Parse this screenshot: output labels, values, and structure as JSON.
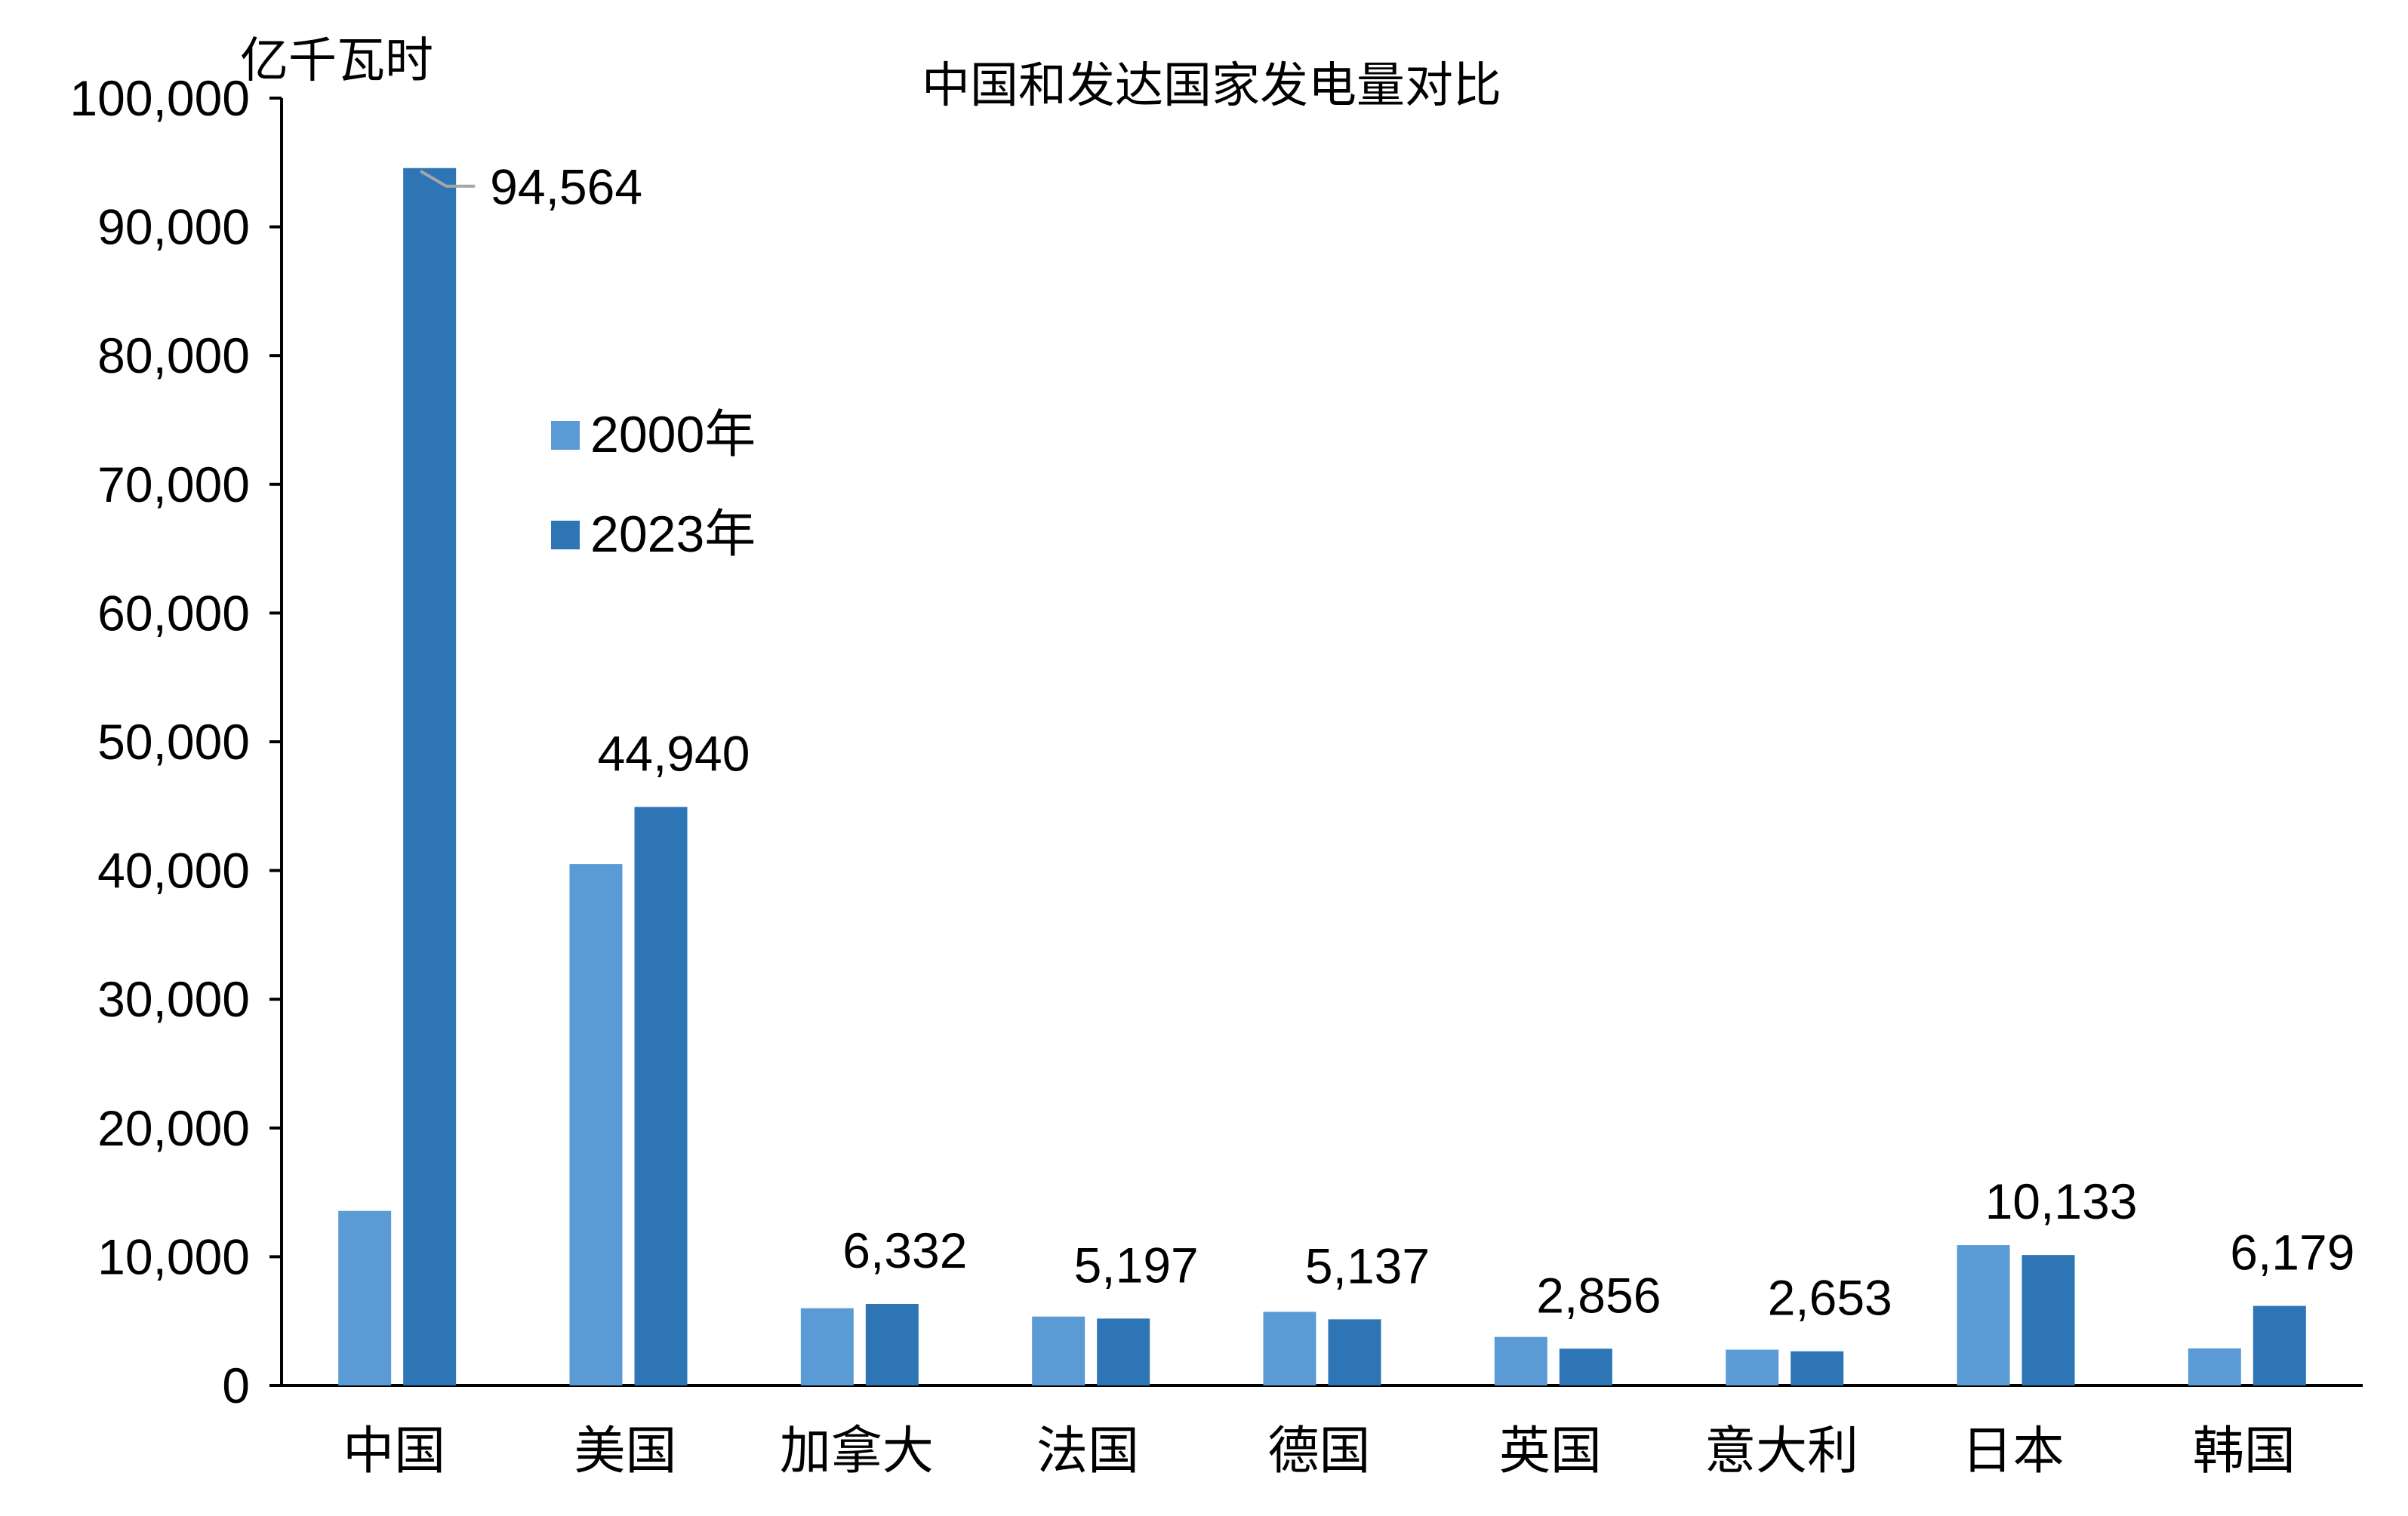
{
  "chart_data": {
    "type": "bar",
    "title": "中国和发达国家发电量对比",
    "ylabel": "亿千瓦时",
    "xlabel": "",
    "categories": [
      "中国",
      "美国",
      "加拿大",
      "法国",
      "德国",
      "英国",
      "意大利",
      "日本",
      "韩国"
    ],
    "series": [
      {
        "name": "2000年",
        "color": "#5b9bd5",
        "values": [
          13560,
          40500,
          6000,
          5350,
          5720,
          3770,
          2780,
          10900,
          2880
        ]
      },
      {
        "name": "2023年",
        "color": "#2e75b6",
        "values": [
          94564,
          44940,
          6332,
          5197,
          5137,
          2856,
          2653,
          10133,
          6179
        ],
        "data_labels": [
          "94,564",
          "44,940",
          "6,332",
          "5,197",
          "5,137",
          "2,856",
          "2,653",
          "10,133",
          "6,179"
        ]
      }
    ],
    "ylim": [
      0,
      100000
    ],
    "yticks": [
      0,
      10000,
      20000,
      30000,
      40000,
      50000,
      60000,
      70000,
      80000,
      90000,
      100000
    ],
    "ytick_labels": [
      "0",
      "10,000",
      "20,000",
      "30,000",
      "40,000",
      "50,000",
      "60,000",
      "70,000",
      "80,000",
      "90,000",
      "100,000"
    ],
    "grid": false,
    "legend_position": "upper-left"
  }
}
